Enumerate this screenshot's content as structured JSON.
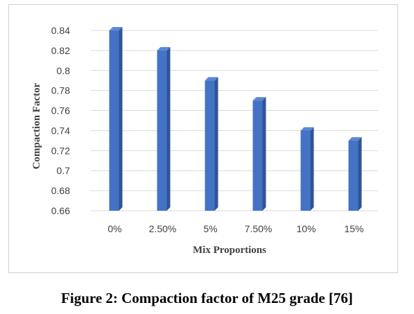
{
  "figure": {
    "caption": "Figure 2: Compaction factor of M25 grade [76]"
  },
  "chart_data": {
    "type": "bar",
    "categories": [
      "0%",
      "2.50%",
      "5%",
      "7.50%",
      "10%",
      "15%"
    ],
    "values": [
      0.84,
      0.82,
      0.79,
      0.77,
      0.74,
      0.73
    ],
    "xlabel": "Mix Proportions",
    "ylabel": "Compaction Factor",
    "ylim": [
      0.66,
      0.84
    ],
    "yticks": [
      "0.84",
      "0.82",
      "0.8",
      "0.78",
      "0.76",
      "0.74",
      "0.72",
      "0.7",
      "0.68",
      "0.66"
    ],
    "grid": true,
    "bar_color": "#4472C4"
  }
}
